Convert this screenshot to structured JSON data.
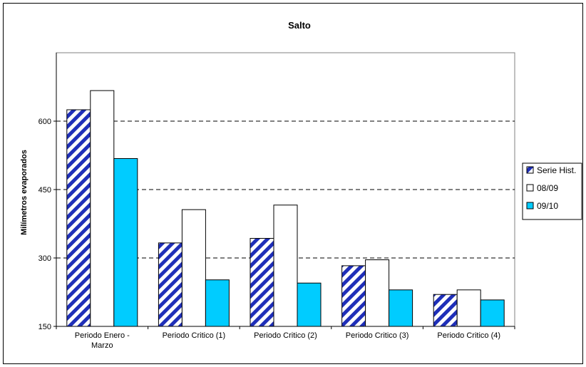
{
  "chart_data": {
    "type": "bar",
    "title": "Salto",
    "ylabel": "Milímetros evaporados",
    "xlabel": "",
    "categories": [
      [
        "Periodo  Enero -",
        "Marzo"
      ],
      [
        "Periodo Critico (1)"
      ],
      [
        "Periodo Critico (2)"
      ],
      [
        "Periodo Critico (3)"
      ],
      [
        "Periodo Critico (4)"
      ]
    ],
    "ylim": [
      150,
      750
    ],
    "yticks": [
      150,
      300,
      450,
      600
    ],
    "grid": "dashed horizontal at labeled ticks",
    "legend_position": "right",
    "series": [
      {
        "name": "Serie Hist.",
        "values": [
          625,
          333,
          343,
          283,
          220
        ],
        "fill": "hatch",
        "color": "#1f2fb8"
      },
      {
        "name": "08/09",
        "values": [
          667,
          406,
          416,
          296,
          230
        ],
        "fill": "solid",
        "color": "#ffffff"
      },
      {
        "name": "09/10",
        "values": [
          518,
          252,
          245,
          230,
          208
        ],
        "fill": "solid",
        "color": "#00ccff"
      }
    ]
  }
}
